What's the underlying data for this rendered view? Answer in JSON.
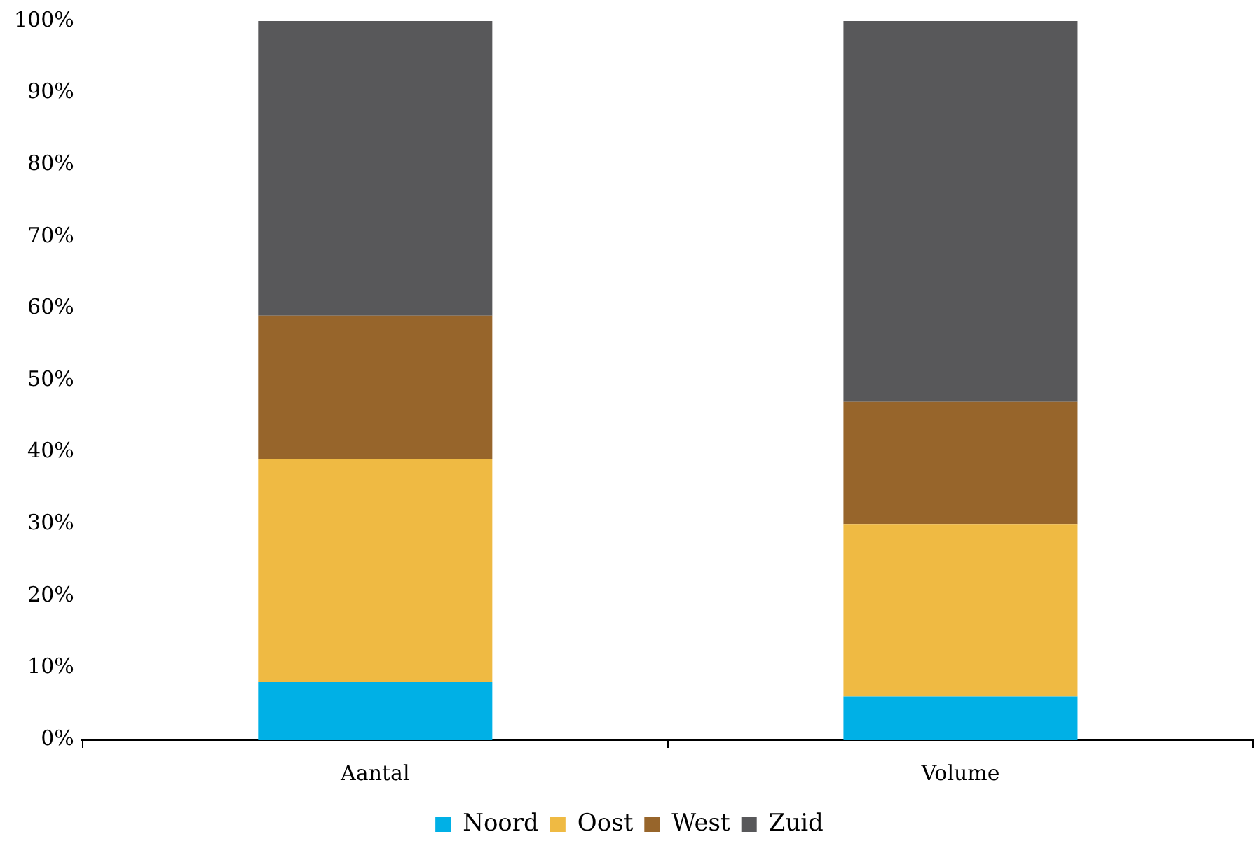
{
  "chart_data": {
    "type": "bar",
    "stacked": true,
    "categories": [
      "Aantal",
      "Volume"
    ],
    "series": [
      {
        "name": "Noord",
        "color": "#00b0e6",
        "values": [
          8,
          6
        ]
      },
      {
        "name": "Oost",
        "color": "#efba43",
        "values": [
          31,
          24
        ]
      },
      {
        "name": "West",
        "color": "#97652b",
        "values": [
          20,
          17
        ]
      },
      {
        "name": "Zuid",
        "color": "#58585a",
        "values": [
          41,
          53
        ]
      }
    ],
    "ylim": [
      0,
      100
    ],
    "yticks": [
      {
        "value": 0,
        "label": "0%"
      },
      {
        "value": 10,
        "label": "10%"
      },
      {
        "value": 20,
        "label": "20%"
      },
      {
        "value": 30,
        "label": "30%"
      },
      {
        "value": 40,
        "label": "40%"
      },
      {
        "value": 50,
        "label": "50%"
      },
      {
        "value": 60,
        "label": "60%"
      },
      {
        "value": 70,
        "label": "70%"
      },
      {
        "value": 80,
        "label": "80%"
      },
      {
        "value": 90,
        "label": "90%"
      },
      {
        "value": 100,
        "label": "100%"
      }
    ],
    "grid": false,
    "legend": "bottom"
  }
}
